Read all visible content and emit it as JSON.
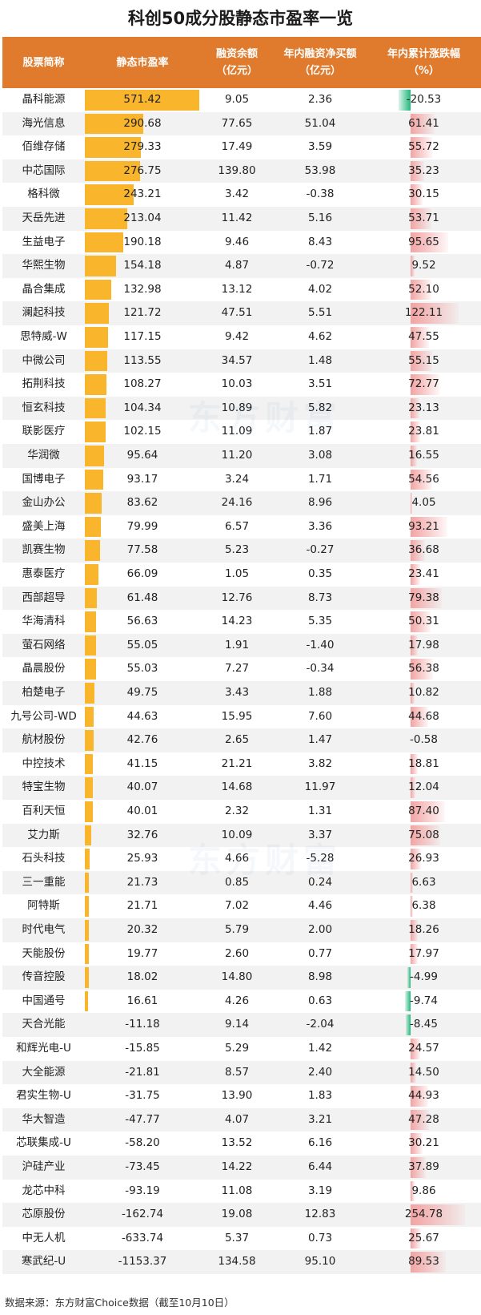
{
  "chart_data": {
    "type": "table",
    "title": "科创50成分股静态市盈率一览",
    "columns": [
      {
        "key": "name",
        "line1": "股票简称",
        "line2": ""
      },
      {
        "key": "pe",
        "line1": "静态市盈率",
        "line2": ""
      },
      {
        "key": "margin",
        "line1": "融资余额",
        "line2": "（亿元）"
      },
      {
        "key": "netbuy",
        "line1": "年内融资净买额",
        "line2": "（亿元）"
      },
      {
        "key": "ytd",
        "line1": "年内累计涨跌幅",
        "line2": "（%）"
      }
    ],
    "rows": [
      {
        "name": "晶科能源",
        "pe": "571.42",
        "margin": "9.05",
        "netbuy": "2.36",
        "ytd": "-20.53"
      },
      {
        "name": "海光信息",
        "pe": "290.68",
        "margin": "77.65",
        "netbuy": "51.04",
        "ytd": "61.41"
      },
      {
        "name": "佰维存储",
        "pe": "279.33",
        "margin": "17.49",
        "netbuy": "3.59",
        "ytd": "55.72"
      },
      {
        "name": "中芯国际",
        "pe": "276.75",
        "margin": "139.80",
        "netbuy": "53.98",
        "ytd": "35.23"
      },
      {
        "name": "格科微",
        "pe": "243.21",
        "margin": "3.42",
        "netbuy": "-0.38",
        "ytd": "30.15"
      },
      {
        "name": "天岳先进",
        "pe": "213.04",
        "margin": "11.42",
        "netbuy": "5.16",
        "ytd": "53.71"
      },
      {
        "name": "生益电子",
        "pe": "190.18",
        "margin": "9.46",
        "netbuy": "8.43",
        "ytd": "95.65"
      },
      {
        "name": "华熙生物",
        "pe": "154.18",
        "margin": "4.87",
        "netbuy": "-0.72",
        "ytd": "9.52"
      },
      {
        "name": "晶合集成",
        "pe": "132.98",
        "margin": "13.12",
        "netbuy": "4.02",
        "ytd": "52.10"
      },
      {
        "name": "澜起科技",
        "pe": "121.72",
        "margin": "47.51",
        "netbuy": "5.51",
        "ytd": "122.11"
      },
      {
        "name": "思特威-W",
        "pe": "117.15",
        "margin": "9.42",
        "netbuy": "4.62",
        "ytd": "47.55"
      },
      {
        "name": "中微公司",
        "pe": "113.55",
        "margin": "34.57",
        "netbuy": "1.48",
        "ytd": "55.15"
      },
      {
        "name": "拓荆科技",
        "pe": "108.27",
        "margin": "10.03",
        "netbuy": "3.51",
        "ytd": "72.77"
      },
      {
        "name": "恒玄科技",
        "pe": "104.34",
        "margin": "10.89",
        "netbuy": "5.82",
        "ytd": "23.13"
      },
      {
        "name": "联影医疗",
        "pe": "102.15",
        "margin": "11.09",
        "netbuy": "1.87",
        "ytd": "23.81"
      },
      {
        "name": "华润微",
        "pe": "95.64",
        "margin": "11.20",
        "netbuy": "3.08",
        "ytd": "16.55"
      },
      {
        "name": "国博电子",
        "pe": "93.17",
        "margin": "3.24",
        "netbuy": "1.71",
        "ytd": "54.56"
      },
      {
        "name": "金山办公",
        "pe": "83.62",
        "margin": "24.16",
        "netbuy": "8.96",
        "ytd": "4.05"
      },
      {
        "name": "盛美上海",
        "pe": "79.99",
        "margin": "6.57",
        "netbuy": "3.36",
        "ytd": "93.21"
      },
      {
        "name": "凯赛生物",
        "pe": "77.58",
        "margin": "5.23",
        "netbuy": "-0.27",
        "ytd": "36.68"
      },
      {
        "name": "惠泰医疗",
        "pe": "66.09",
        "margin": "1.05",
        "netbuy": "0.35",
        "ytd": "23.41"
      },
      {
        "name": "西部超导",
        "pe": "61.48",
        "margin": "12.76",
        "netbuy": "8.73",
        "ytd": "79.38"
      },
      {
        "name": "华海清科",
        "pe": "56.63",
        "margin": "14.23",
        "netbuy": "5.35",
        "ytd": "50.31"
      },
      {
        "name": "萤石网络",
        "pe": "55.05",
        "margin": "1.91",
        "netbuy": "-1.40",
        "ytd": "17.98"
      },
      {
        "name": "晶晨股份",
        "pe": "55.03",
        "margin": "7.27",
        "netbuy": "-0.34",
        "ytd": "56.38"
      },
      {
        "name": "柏楚电子",
        "pe": "49.75",
        "margin": "3.43",
        "netbuy": "1.88",
        "ytd": "10.82"
      },
      {
        "name": "九号公司-WD",
        "pe": "44.63",
        "margin": "15.95",
        "netbuy": "7.60",
        "ytd": "44.68"
      },
      {
        "name": "航材股份",
        "pe": "42.76",
        "margin": "2.65",
        "netbuy": "1.47",
        "ytd": "-0.58"
      },
      {
        "name": "中控技术",
        "pe": "41.15",
        "margin": "21.21",
        "netbuy": "3.82",
        "ytd": "18.81"
      },
      {
        "name": "特宝生物",
        "pe": "40.07",
        "margin": "14.68",
        "netbuy": "11.97",
        "ytd": "12.04"
      },
      {
        "name": "百利天恒",
        "pe": "40.01",
        "margin": "2.32",
        "netbuy": "1.31",
        "ytd": "87.40"
      },
      {
        "name": "艾力斯",
        "pe": "32.76",
        "margin": "10.09",
        "netbuy": "3.37",
        "ytd": "75.08"
      },
      {
        "name": "石头科技",
        "pe": "25.93",
        "margin": "4.66",
        "netbuy": "-5.28",
        "ytd": "26.93"
      },
      {
        "name": "三一重能",
        "pe": "21.73",
        "margin": "0.85",
        "netbuy": "0.24",
        "ytd": "6.63"
      },
      {
        "name": "阿特斯",
        "pe": "21.71",
        "margin": "7.02",
        "netbuy": "4.46",
        "ytd": "6.38"
      },
      {
        "name": "时代电气",
        "pe": "20.32",
        "margin": "5.79",
        "netbuy": "2.00",
        "ytd": "18.26"
      },
      {
        "name": "天能股份",
        "pe": "19.77",
        "margin": "2.60",
        "netbuy": "0.77",
        "ytd": "17.97"
      },
      {
        "name": "传音控股",
        "pe": "18.02",
        "margin": "14.80",
        "netbuy": "8.98",
        "ytd": "-4.99"
      },
      {
        "name": "中国通号",
        "pe": "16.61",
        "margin": "4.26",
        "netbuy": "0.63",
        "ytd": "-9.74"
      },
      {
        "name": "天合光能",
        "pe": "-11.18",
        "margin": "9.14",
        "netbuy": "-2.04",
        "ytd": "-8.45"
      },
      {
        "name": "和辉光电-U",
        "pe": "-15.85",
        "margin": "5.29",
        "netbuy": "1.42",
        "ytd": "24.57"
      },
      {
        "name": "大全能源",
        "pe": "-21.81",
        "margin": "8.57",
        "netbuy": "2.40",
        "ytd": "14.50"
      },
      {
        "name": "君实生物-U",
        "pe": "-31.75",
        "margin": "13.90",
        "netbuy": "1.83",
        "ytd": "44.93"
      },
      {
        "name": "华大智造",
        "pe": "-47.77",
        "margin": "4.07",
        "netbuy": "3.21",
        "ytd": "47.28"
      },
      {
        "name": "芯联集成-U",
        "pe": "-58.20",
        "margin": "13.52",
        "netbuy": "6.16",
        "ytd": "30.21"
      },
      {
        "name": "沪硅产业",
        "pe": "-73.45",
        "margin": "14.22",
        "netbuy": "6.44",
        "ytd": "37.89"
      },
      {
        "name": "龙芯中科",
        "pe": "-93.19",
        "margin": "11.08",
        "netbuy": "3.19",
        "ytd": "9.86"
      },
      {
        "name": "芯原股份",
        "pe": "-162.74",
        "margin": "19.08",
        "netbuy": "12.83",
        "ytd": "254.78"
      },
      {
        "name": "中无人机",
        "pe": "-633.74",
        "margin": "5.37",
        "netbuy": "0.73",
        "ytd": "25.67"
      },
      {
        "name": "寒武纪-U",
        "pe": "-1153.37",
        "margin": "134.58",
        "netbuy": "95.10",
        "ytd": "89.53"
      }
    ],
    "source": "数据来源：东方财富Choice数据（截至10月10日）"
  },
  "watermark": "东方财富",
  "colors": {
    "header_bg": "#e07a2c",
    "pe_bar": "#f9b52c",
    "ytd_positive_bar": "#f3a3a3",
    "ytd_negative_bar": "#1fb87a",
    "alt_row_bg": "#f2f2f2"
  }
}
